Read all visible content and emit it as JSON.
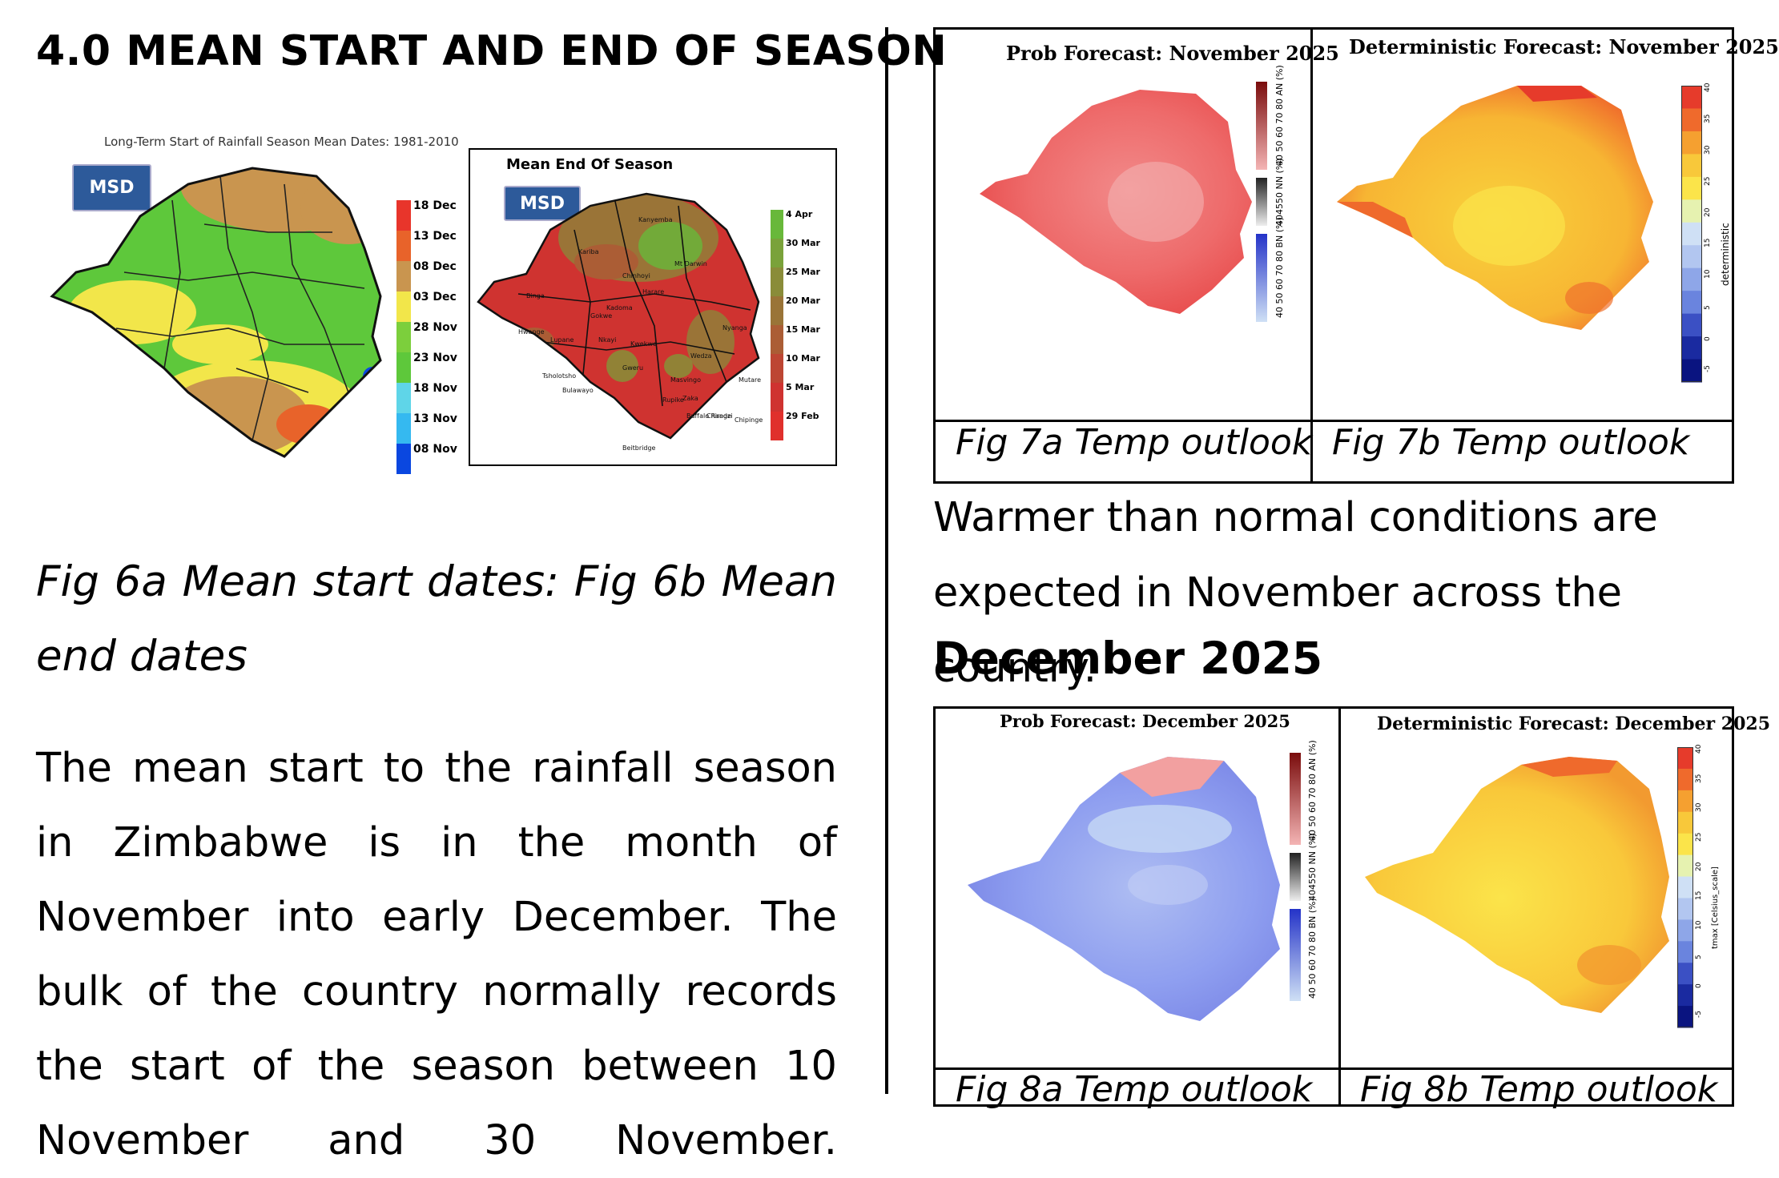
{
  "section_heading": "4.0 MEAN START AND END OF SEASON",
  "fig6a": {
    "title": "Long-Term Start of Rainfall Season Mean Dates: 1981-2010",
    "logo": "MSD",
    "legend": [
      "18 Dec",
      "13 Dec",
      "08 Dec",
      "03 Dec",
      "28 Nov",
      "23 Nov",
      "18 Nov",
      "13 Nov",
      "08 Nov"
    ],
    "legend_colors": [
      "#e8352b",
      "#e8632a",
      "#c9954f",
      "#f2e64a",
      "#7ccf3c",
      "#5ec83b",
      "#5fd5e8",
      "#35b9f0",
      "#0a47e0"
    ]
  },
  "fig6b": {
    "title": "Mean End Of Season",
    "logo": "MSD",
    "legend": [
      "4 Apr",
      "30 Mar",
      "25 Mar",
      "20 Mar",
      "15 Mar",
      "10 Mar",
      "5 Mar",
      "29 Feb"
    ],
    "legend_colors": [
      "#68b83a",
      "#7aa23a",
      "#8a8c39",
      "#9a7437",
      "#ab5d35",
      "#bd4633",
      "#cf3330",
      "#e0302c"
    ],
    "place_names": [
      "Kanyemba",
      "Kariba",
      "Binga",
      "Gokwe",
      "Hwange",
      "Lupane",
      "Nkayi",
      "Kwekwe",
      "Gweru",
      "Tsholotsho",
      "Bulawayo",
      "Masvingo",
      "Zaka",
      "Rupike",
      "Chiredzi",
      "Beitbridge",
      "Mutare",
      "Chipinge",
      "Buffalo Range",
      "Wedza",
      "Nyanga",
      "Harare",
      "Mt Darwin",
      "Chinhoyi",
      "Kadoma"
    ]
  },
  "fig6_caption": "Fig 6a Mean start dates: Fig 6b Mean end dates",
  "body_text": "The mean start to the rainfall season in Zimbabwe is in the month of November into early December. The bulk of the country normally records the start of the season between 10 November and 30 November.",
  "fig7a": {
    "title": "Prob Forecast: November 2025",
    "caption": "Fig 7a Temp outlook",
    "bar_labels": [
      "40 50 60 70 80 AN (%)",
      "404550 NN (%)",
      "40 50 60 70 80 BN (%)"
    ]
  },
  "fig7b": {
    "title": "Deterministic Forecast: November 2025",
    "caption": "Fig 7b Temp outlook",
    "ticks": [
      "40",
      "35",
      "30",
      "25",
      "20",
      "15",
      "10",
      "5",
      "0",
      "-5"
    ],
    "axis_label": "deterministic"
  },
  "nov_text": "Warmer than normal conditions are expected in November across the country.",
  "dec_heading": "December 2025",
  "fig8a": {
    "title": "Prob Forecast: December 2025",
    "caption": "Fig 8a Temp outlook",
    "bar_labels": [
      "40 50 60 70 80 AN (%)",
      "404550 NN (%)",
      "40 50 60 70 80 BN (%)"
    ]
  },
  "fig8b": {
    "title": "Deterministic Forecast: December 2025",
    "caption": "Fig 8b Temp outlook",
    "ticks": [
      "40",
      "35",
      "30",
      "25",
      "20",
      "15",
      "10",
      "5",
      "0",
      "-5"
    ],
    "axis_label": "tmax [Celsius_scale]"
  }
}
